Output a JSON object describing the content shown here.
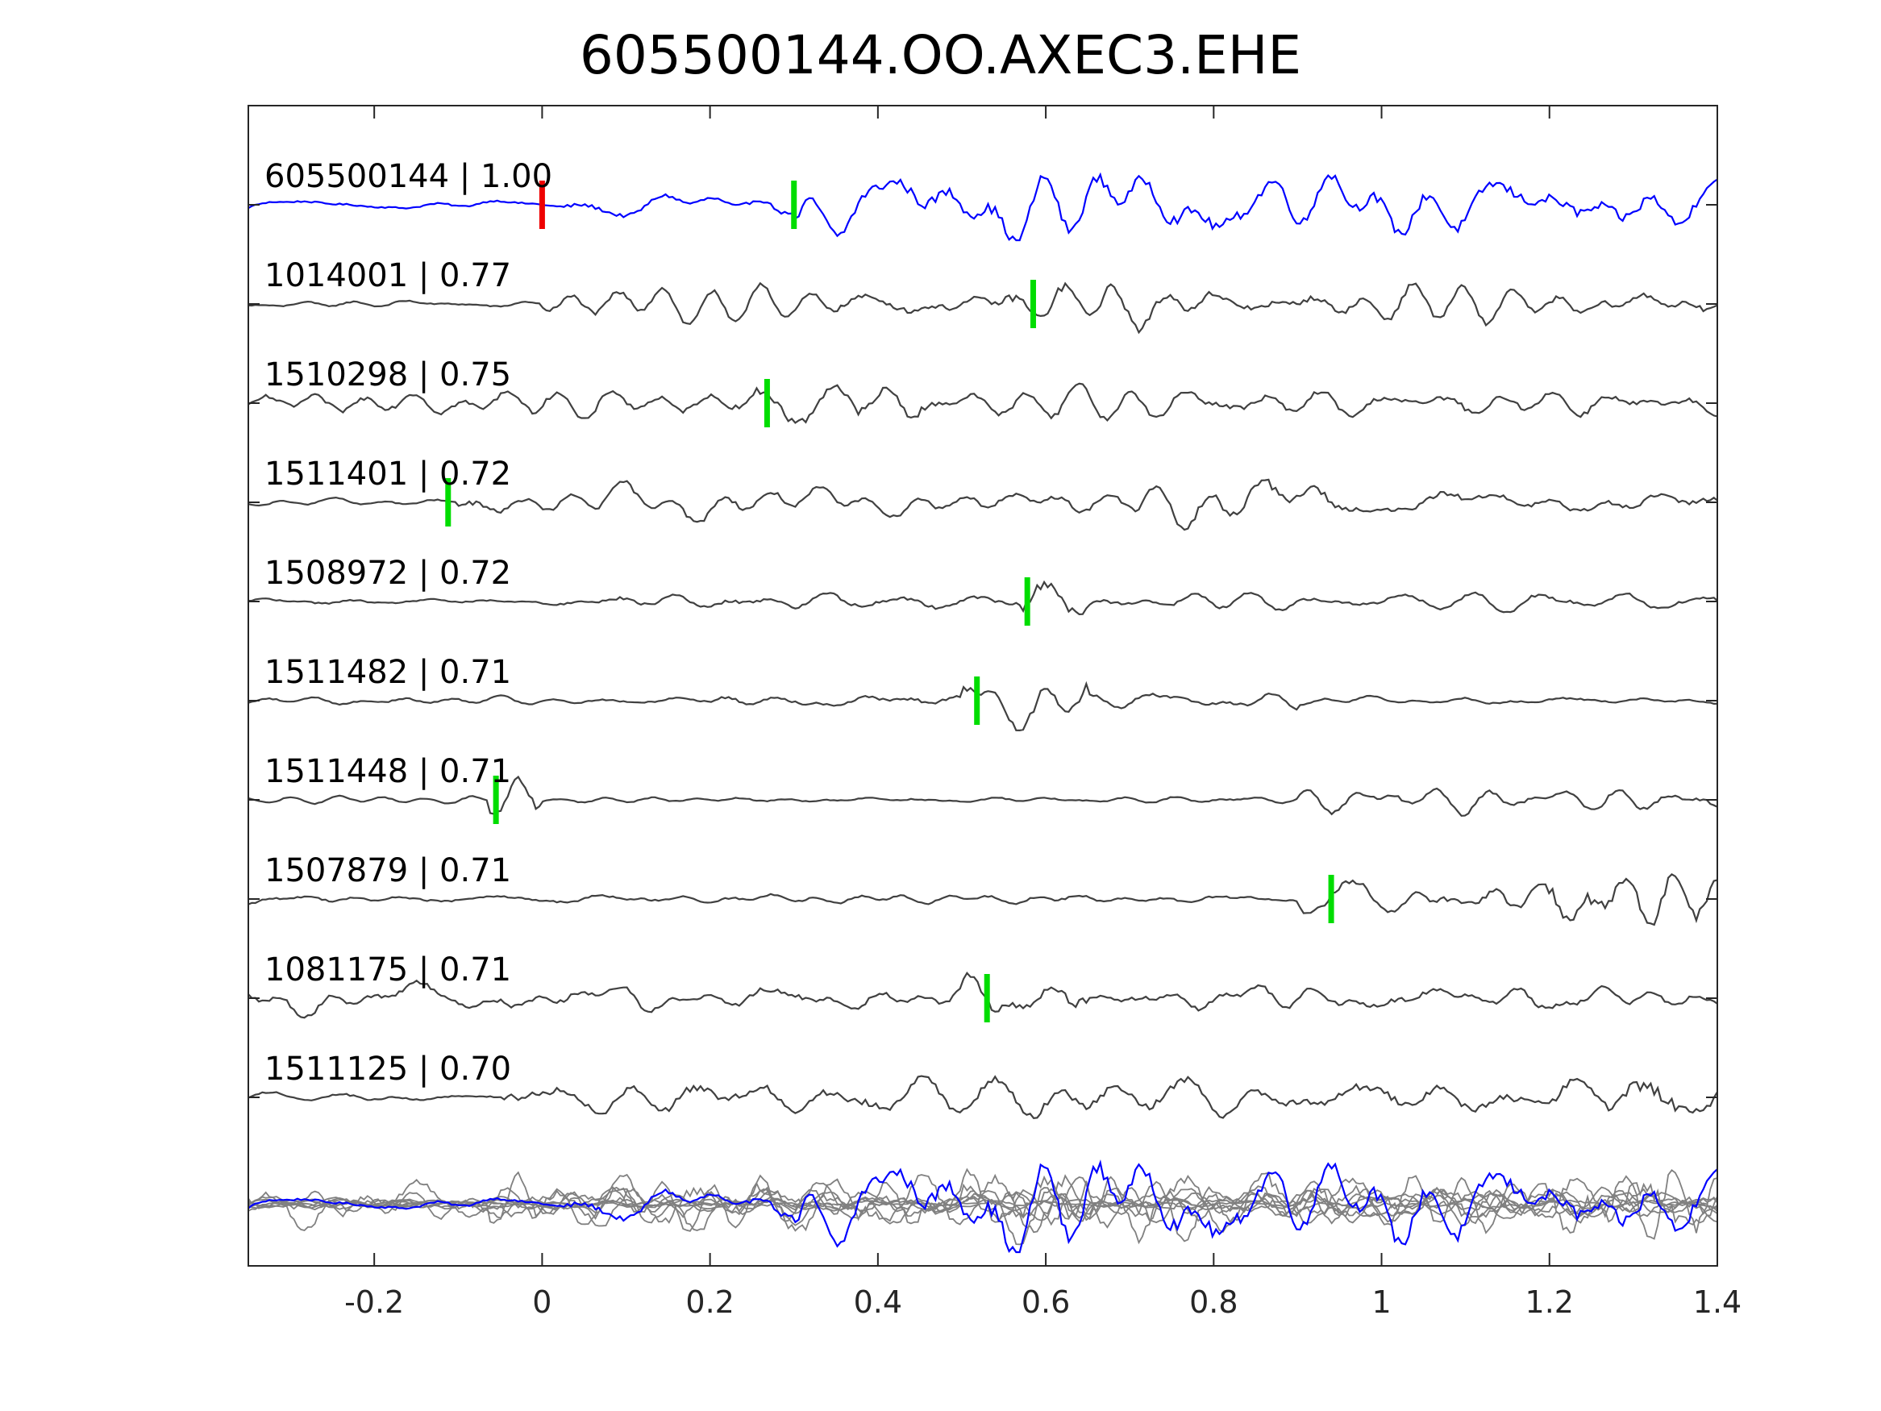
{
  "chart_data": {
    "type": "line",
    "title": "605500144.OO.AXEC3.EHE",
    "xlabel": "",
    "ylabel": "",
    "xlim": [
      -0.35,
      1.4
    ],
    "xticks": [
      -0.2,
      0,
      0.2,
      0.4,
      0.6,
      0.8,
      1,
      1.2,
      1.4
    ],
    "xtick_labels": [
      "-0.2",
      "0",
      "0.2",
      "0.4",
      "0.6",
      "0.8",
      "1",
      "1.2",
      "1.4"
    ],
    "grid": false,
    "colors": {
      "template": "#0000ff",
      "matches": "#404040",
      "stack": "#808080",
      "pick": "#00dd00",
      "origin": "#ee0000"
    },
    "series": [
      {
        "name": "605500144",
        "label": "605500144 | 1.00",
        "cc": 1.0,
        "pick_time": 0.3,
        "origin_time": 0.0,
        "color": "#0000ff"
      },
      {
        "name": "1014001",
        "label": "1014001 | 0.77",
        "cc": 0.77,
        "pick_time": 0.585
      },
      {
        "name": "1510298",
        "label": "1510298 | 0.75",
        "cc": 0.75,
        "pick_time": 0.268
      },
      {
        "name": "1511401",
        "label": "1511401 | 0.72",
        "cc": 0.72,
        "pick_time": -0.112
      },
      {
        "name": "1508972",
        "label": "1508972 | 0.72",
        "cc": 0.72,
        "pick_time": 0.578
      },
      {
        "name": "1511482",
        "label": "1511482 | 0.71",
        "cc": 0.71,
        "pick_time": 0.518
      },
      {
        "name": "1511448",
        "label": "1511448 | 0.71",
        "cc": 0.71,
        "pick_time": -0.055
      },
      {
        "name": "1507879",
        "label": "1507879 | 0.71",
        "cc": 0.71,
        "pick_time": 0.94
      },
      {
        "name": "1081175",
        "label": "1081175 | 0.71",
        "cc": 0.71,
        "pick_time": 0.53
      },
      {
        "name": "1511125",
        "label": "1511125 | 0.70",
        "cc": 0.7,
        "pick_time": null
      }
    ]
  }
}
